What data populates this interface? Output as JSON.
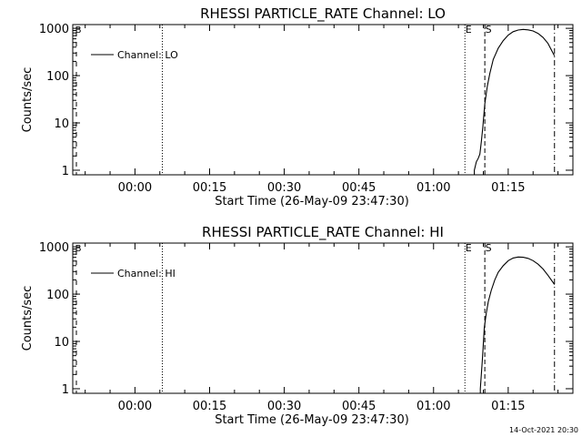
{
  "footer_timestamp": "14-Oct-2021 20:30",
  "chart_data": [
    {
      "type": "line",
      "title": "RHESSI PARTICLE_RATE Channel: LO",
      "xlabel": "Start Time (26-May-09 23:47:30)",
      "ylabel": "Counts/sec",
      "yscale": "log",
      "ylim": [
        0.8,
        1200
      ],
      "xlim": [
        -12.5,
        88
      ],
      "x_unit": "minutes after 00:00 (26/27-May-09)",
      "xtick_labels": [
        {
          "x": 0,
          "label": "00:00"
        },
        {
          "x": 15,
          "label": "00:15"
        },
        {
          "x": 30,
          "label": "00:30"
        },
        {
          "x": 45,
          "label": "00:45"
        },
        {
          "x": 60,
          "label": "01:00"
        },
        {
          "x": 75,
          "label": "01:15"
        }
      ],
      "ytick_labels": [
        {
          "y": 1,
          "label": "1"
        },
        {
          "y": 10,
          "label": "10"
        },
        {
          "y": 100,
          "label": "100"
        },
        {
          "y": 1000,
          "label": "1000"
        }
      ],
      "legend": {
        "label": "Channel: LO",
        "placement": "top-left"
      },
      "markers": [
        {
          "x": 5.5,
          "style": "dotted",
          "label": ""
        },
        {
          "x": 66.3,
          "style": "dotted",
          "label": "E"
        },
        {
          "x": 70.3,
          "style": "dashed",
          "label": "S"
        },
        {
          "x": 84.3,
          "style": "dashdot",
          "label": ""
        }
      ],
      "series": [
        {
          "name": "Channel: LO",
          "x": [
            68.2,
            68.6,
            69.0,
            69.3,
            69.6,
            69.9,
            70.3,
            70.8,
            71.3,
            72.0,
            73.0,
            74.0,
            75.0,
            76.0,
            77.0,
            78.0,
            79.0,
            80.0,
            81.0,
            82.0,
            83.0,
            84.3
          ],
          "y": [
            1.0,
            1.5,
            1.8,
            2.2,
            4.0,
            8.0,
            25,
            60,
            110,
            220,
            380,
            550,
            720,
            850,
            920,
            950,
            930,
            880,
            780,
            640,
            480,
            260
          ]
        }
      ]
    },
    {
      "type": "line",
      "title": "RHESSI PARTICLE_RATE Channel: HI",
      "xlabel": "Start Time (26-May-09 23:47:30)",
      "ylabel": "Counts/sec",
      "yscale": "log",
      "ylim": [
        0.8,
        1200
      ],
      "xlim": [
        -12.5,
        88
      ],
      "x_unit": "minutes after 00:00 (26/27-May-09)",
      "xtick_labels": [
        {
          "x": 0,
          "label": "00:00"
        },
        {
          "x": 15,
          "label": "00:15"
        },
        {
          "x": 30,
          "label": "00:30"
        },
        {
          "x": 45,
          "label": "00:45"
        },
        {
          "x": 60,
          "label": "01:00"
        },
        {
          "x": 75,
          "label": "01:15"
        }
      ],
      "ytick_labels": [
        {
          "y": 1,
          "label": "1"
        },
        {
          "y": 10,
          "label": "10"
        },
        {
          "y": 100,
          "label": "100"
        },
        {
          "y": 1000,
          "label": "1000"
        }
      ],
      "legend": {
        "label": "Channel: HI",
        "placement": "top-left"
      },
      "markers": [
        {
          "x": 5.5,
          "style": "dotted",
          "label": ""
        },
        {
          "x": 66.3,
          "style": "dotted",
          "label": "E"
        },
        {
          "x": 70.3,
          "style": "dashed",
          "label": "S"
        },
        {
          "x": 84.3,
          "style": "dashdot",
          "label": ""
        }
      ],
      "series": [
        {
          "name": "Channel: HI",
          "x": [
            69.4,
            69.8,
            70.2,
            70.6,
            71.0,
            71.6,
            72.3,
            73.0,
            74.0,
            75.0,
            76.0,
            77.0,
            78.0,
            79.0,
            80.0,
            81.0,
            82.0,
            83.0,
            84.3
          ],
          "y": [
            1.0,
            4.0,
            20,
            40,
            70,
            120,
            200,
            290,
            400,
            510,
            580,
            610,
            600,
            570,
            510,
            430,
            340,
            250,
            160
          ]
        }
      ]
    }
  ]
}
